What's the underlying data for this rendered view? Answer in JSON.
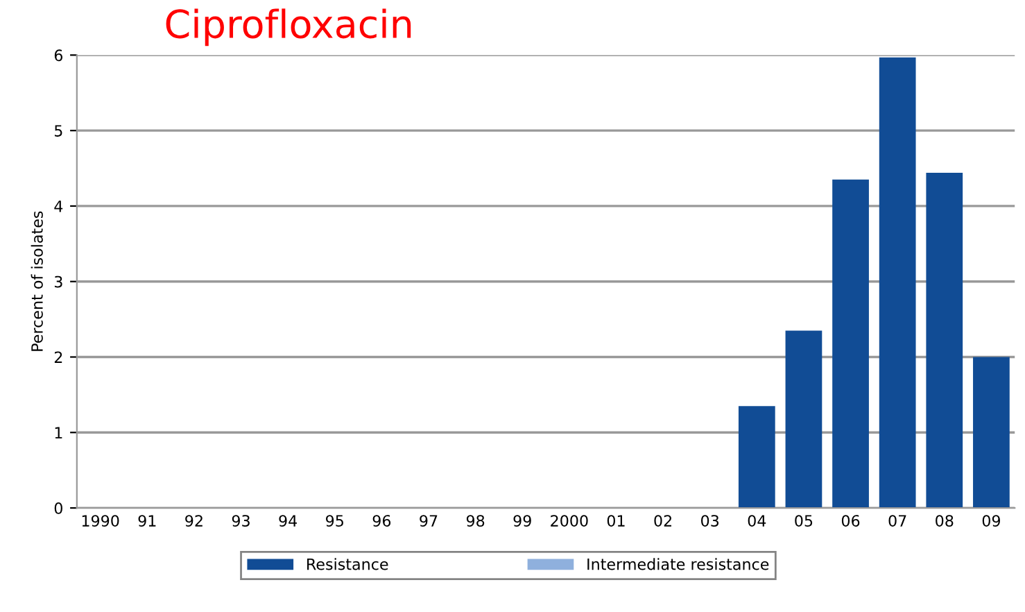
{
  "chart_data": {
    "type": "bar",
    "title": "Ciprofloxacin",
    "ylabel": "Percent of isolates",
    "categories": [
      "1990",
      "91",
      "92",
      "93",
      "94",
      "95",
      "96",
      "97",
      "98",
      "99",
      "2000",
      "01",
      "02",
      "03",
      "04",
      "05",
      "06",
      "07",
      "08",
      "09"
    ],
    "series": [
      {
        "name": "Resistance",
        "color": "#114c95",
        "values": [
          null,
          null,
          null,
          null,
          null,
          null,
          null,
          null,
          null,
          null,
          null,
          null,
          null,
          null,
          1.35,
          2.35,
          4.35,
          5.97,
          4.44,
          2.0
        ]
      },
      {
        "name": "Intermediate resistance",
        "color": "#8fb0dd",
        "values": [
          null,
          null,
          null,
          null,
          null,
          null,
          null,
          null,
          null,
          null,
          null,
          null,
          null,
          null,
          null,
          null,
          null,
          null,
          null,
          null
        ]
      }
    ],
    "stacked": true,
    "ylim": [
      0,
      6
    ],
    "yticks": [
      0,
      1,
      2,
      3,
      4,
      5,
      6
    ],
    "grid": "y",
    "legend": "bottom"
  }
}
